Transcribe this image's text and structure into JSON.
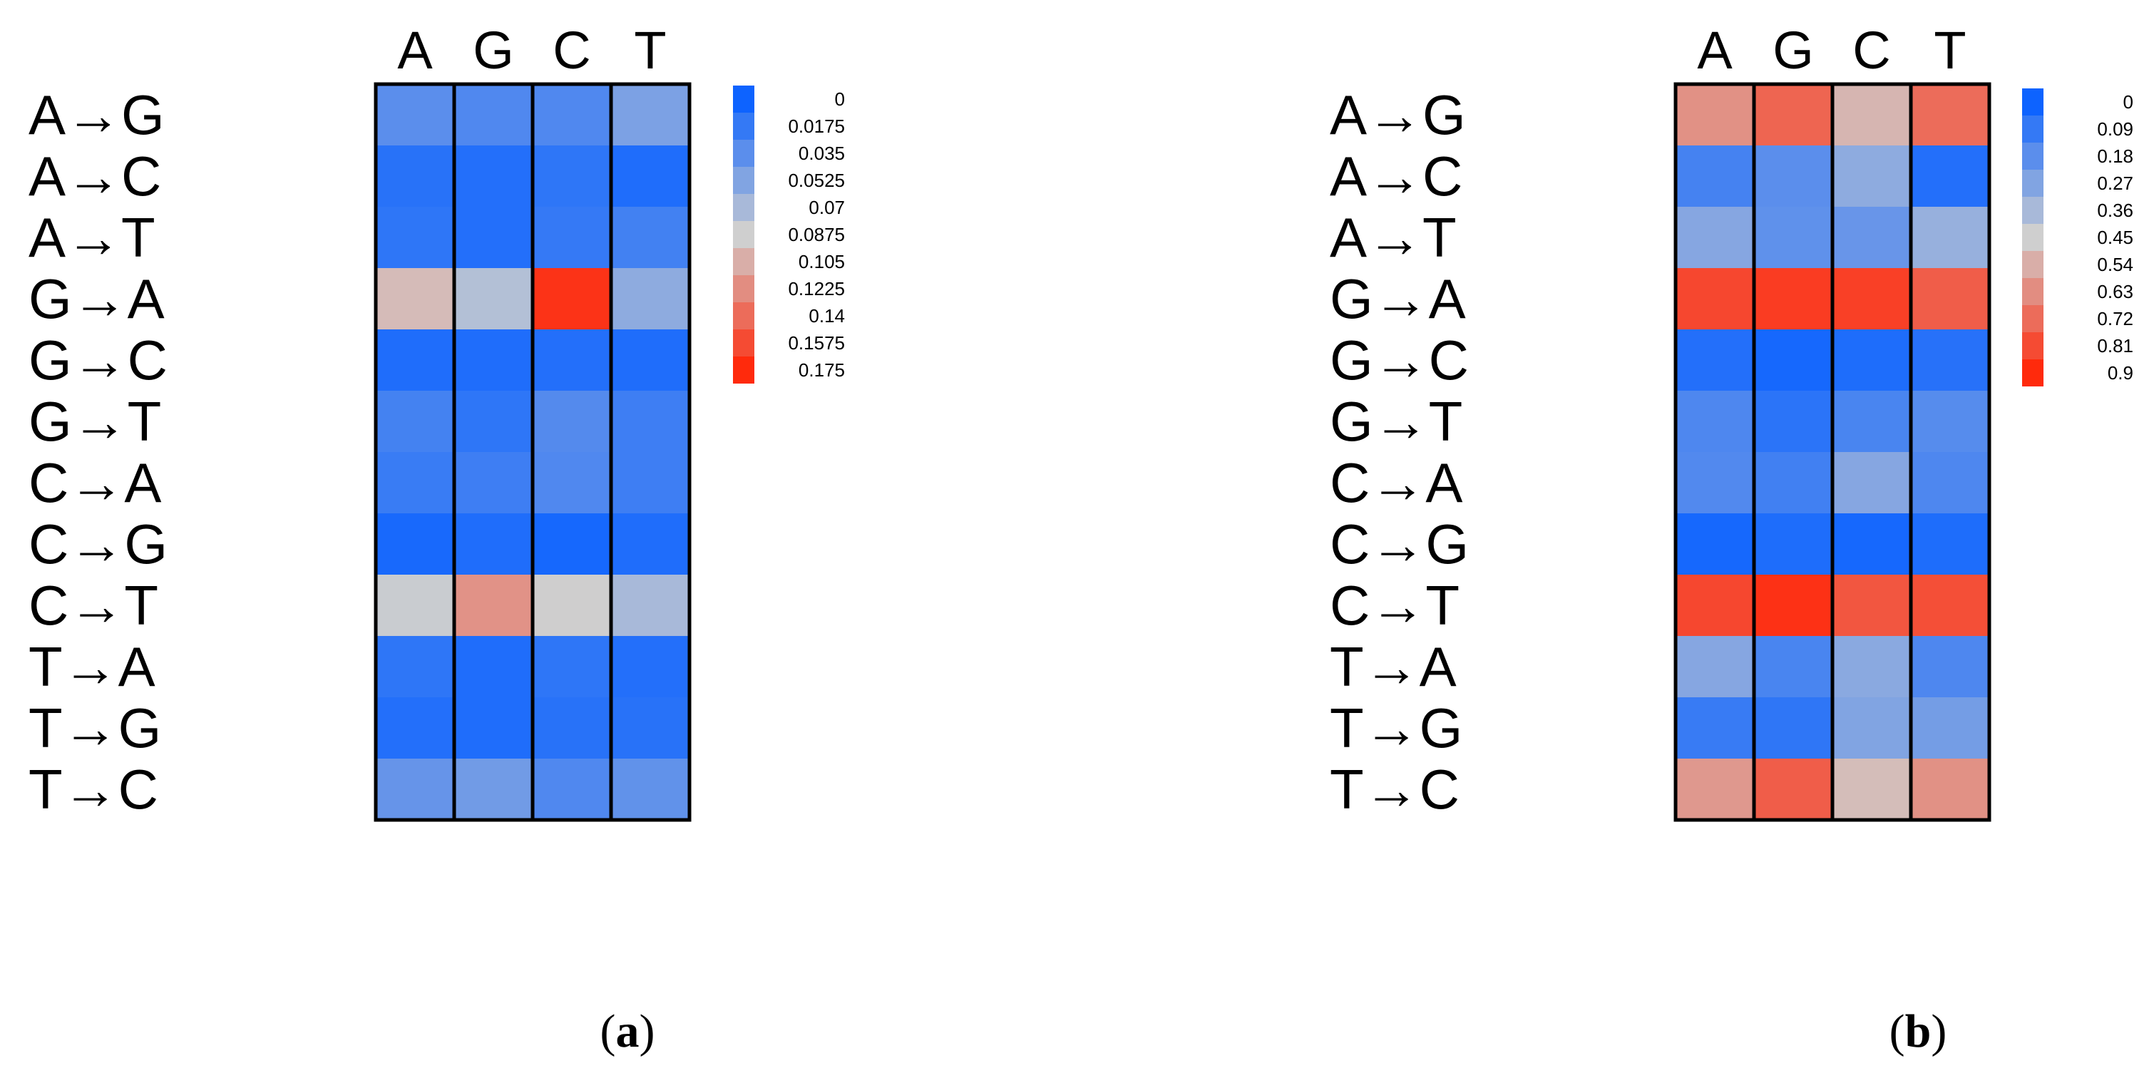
{
  "chart_data": [
    {
      "type": "heatmap",
      "panel_label": "a",
      "columns": [
        "A",
        "G",
        "C",
        "T"
      ],
      "rows": [
        "A→G",
        "A→C",
        "A→T",
        "G→A",
        "G→C",
        "G→T",
        "C→A",
        "C→G",
        "C→T",
        "T→A",
        "T→G",
        "T→C"
      ],
      "values": [
        [
          0.035,
          0.03,
          0.03,
          0.05
        ],
        [
          0.012,
          0.01,
          0.015,
          0.008
        ],
        [
          0.015,
          0.01,
          0.018,
          0.024
        ],
        [
          0.098,
          0.075,
          0.17,
          0.058
        ],
        [
          0.008,
          0.008,
          0.01,
          0.008
        ],
        [
          0.025,
          0.015,
          0.032,
          0.022
        ],
        [
          0.02,
          0.022,
          0.03,
          0.022
        ],
        [
          0.005,
          0.008,
          0.004,
          0.008
        ],
        [
          0.085,
          0.12,
          0.088,
          0.07
        ],
        [
          0.015,
          0.008,
          0.015,
          0.01
        ],
        [
          0.01,
          0.008,
          0.012,
          0.012
        ],
        [
          0.04,
          0.045,
          0.03,
          0.038
        ]
      ],
      "colorbar": {
        "ticks": [
          "0",
          "0.0175",
          "0.035",
          "0.0525",
          "0.07",
          "0.0875",
          "0.105",
          "0.1225",
          "0.14",
          "0.1575",
          "0.175"
        ],
        "range": [
          0,
          0.175
        ]
      }
    },
    {
      "type": "heatmap",
      "panel_label": "b",
      "columns": [
        "A",
        "G",
        "C",
        "T"
      ],
      "rows": [
        "A→G",
        "A→C",
        "A→T",
        "G→A",
        "G→C",
        "G→T",
        "C→A",
        "C→G",
        "C→T",
        "T→A",
        "T→G",
        "T→C"
      ],
      "values": [
        [
          0.62,
          0.74,
          0.52,
          0.72
        ],
        [
          0.13,
          0.18,
          0.3,
          0.05
        ],
        [
          0.28,
          0.19,
          0.21,
          0.32
        ],
        [
          0.82,
          0.85,
          0.84,
          0.76
        ],
        [
          0.05,
          0.02,
          0.04,
          0.06
        ],
        [
          0.15,
          0.07,
          0.14,
          0.17
        ],
        [
          0.16,
          0.12,
          0.28,
          0.15
        ],
        [
          0.02,
          0.04,
          0.02,
          0.04
        ],
        [
          0.82,
          0.88,
          0.78,
          0.8
        ],
        [
          0.28,
          0.14,
          0.29,
          0.15
        ],
        [
          0.1,
          0.08,
          0.27,
          0.24
        ],
        [
          0.6,
          0.76,
          0.5,
          0.62
        ]
      ],
      "colorbar": {
        "ticks": [
          "0",
          "0.09",
          "0.18",
          "0.27",
          "0.36",
          "0.45",
          "0.54",
          "0.63",
          "0.72",
          "0.81",
          "0.9"
        ],
        "range": [
          0,
          0.9
        ]
      }
    }
  ],
  "colors": {
    "low": "#0d63ff",
    "mid": "#cfcfcf",
    "high": "#ff2a0c",
    "border": "#000000"
  }
}
